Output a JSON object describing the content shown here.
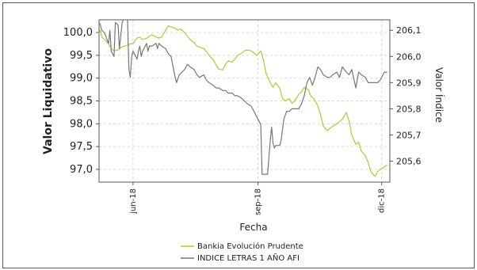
{
  "chart_data": {
    "type": "line",
    "xlabel": "Fecha",
    "ylabel_left": "Valor Liquidativo",
    "ylabel_right": "Valor Índice",
    "x_ticks": [
      "jun-18",
      "sep-18",
      "dic-18"
    ],
    "x_tick_values": [
      "2018-06-01",
      "2018-09-01",
      "2018-12-01"
    ],
    "x_range": [
      "2018-05-07",
      "2018-12-07"
    ],
    "y_left_ticks": [
      "97,0",
      "97,5",
      "98,0",
      "98,5",
      "99,0",
      "99,5",
      "100,0"
    ],
    "y_left_range": [
      96.72,
      100.28
    ],
    "y_right_ticks": [
      "205,6",
      "205,7",
      "205,8",
      "205,9",
      "206,0",
      "206,1"
    ],
    "y_right_range": [
      205.52,
      206.14
    ],
    "grid": true,
    "legend_position": "bottom",
    "series": [
      {
        "name": "Bankia Evolución Prudente",
        "axis": "left",
        "color": "#b5c832",
        "points": [
          [
            "2018-05-07",
            99.98
          ],
          [
            "2018-05-08",
            100.05
          ],
          [
            "2018-05-09",
            99.9
          ],
          [
            "2018-05-11",
            99.85
          ],
          [
            "2018-05-14",
            99.75
          ],
          [
            "2018-05-16",
            99.65
          ],
          [
            "2018-05-18",
            99.6
          ],
          [
            "2018-05-21",
            99.62
          ],
          [
            "2018-05-23",
            99.67
          ],
          [
            "2018-05-25",
            99.7
          ],
          [
            "2018-05-28",
            99.72
          ],
          [
            "2018-05-30",
            99.75
          ],
          [
            "2018-06-01",
            99.76
          ],
          [
            "2018-06-04",
            99.88
          ],
          [
            "2018-06-06",
            99.9
          ],
          [
            "2018-06-08",
            99.85
          ],
          [
            "2018-06-11",
            99.87
          ],
          [
            "2018-06-13",
            99.92
          ],
          [
            "2018-06-15",
            99.95
          ],
          [
            "2018-06-18",
            99.9
          ],
          [
            "2018-06-20",
            99.88
          ],
          [
            "2018-06-22",
            99.9
          ],
          [
            "2018-06-25",
            100.05
          ],
          [
            "2018-06-27",
            100.15
          ],
          [
            "2018-06-29",
            100.12
          ],
          [
            "2018-07-02",
            100.1
          ],
          [
            "2018-07-04",
            100.05
          ],
          [
            "2018-07-06",
            100.08
          ],
          [
            "2018-07-09",
            100.0
          ],
          [
            "2018-07-11",
            99.92
          ],
          [
            "2018-07-13",
            99.85
          ],
          [
            "2018-07-16",
            99.78
          ],
          [
            "2018-07-18",
            99.7
          ],
          [
            "2018-07-20",
            99.68
          ],
          [
            "2018-07-23",
            99.65
          ],
          [
            "2018-07-25",
            99.58
          ],
          [
            "2018-07-27",
            99.5
          ],
          [
            "2018-07-30",
            99.4
          ],
          [
            "2018-08-01",
            99.3
          ],
          [
            "2018-08-03",
            99.2
          ],
          [
            "2018-08-06",
            99.18
          ],
          [
            "2018-08-08",
            99.3
          ],
          [
            "2018-08-10",
            99.38
          ],
          [
            "2018-08-13",
            99.35
          ],
          [
            "2018-08-15",
            99.42
          ],
          [
            "2018-08-17",
            99.5
          ],
          [
            "2018-08-20",
            99.55
          ],
          [
            "2018-08-22",
            99.6
          ],
          [
            "2018-08-24",
            99.62
          ],
          [
            "2018-08-27",
            99.6
          ],
          [
            "2018-08-29",
            99.55
          ],
          [
            "2018-08-31",
            99.5
          ],
          [
            "2018-09-03",
            99.6
          ],
          [
            "2018-09-05",
            99.4
          ],
          [
            "2018-09-07",
            99.1
          ],
          [
            "2018-09-10",
            98.9
          ],
          [
            "2018-09-12",
            98.8
          ],
          [
            "2018-09-14",
            98.9
          ],
          [
            "2018-09-17",
            98.78
          ],
          [
            "2018-09-19",
            98.55
          ],
          [
            "2018-09-21",
            98.5
          ],
          [
            "2018-09-24",
            98.55
          ],
          [
            "2018-09-26",
            98.45
          ],
          [
            "2018-09-28",
            98.5
          ],
          [
            "2018-10-01",
            98.65
          ],
          [
            "2018-10-03",
            98.7
          ],
          [
            "2018-10-05",
            98.8
          ],
          [
            "2018-10-08",
            98.75
          ],
          [
            "2018-10-10",
            98.6
          ],
          [
            "2018-10-12",
            98.55
          ],
          [
            "2018-10-15",
            98.4
          ],
          [
            "2018-10-17",
            98.2
          ],
          [
            "2018-10-19",
            97.95
          ],
          [
            "2018-10-22",
            97.85
          ],
          [
            "2018-10-24",
            97.9
          ],
          [
            "2018-10-26",
            97.95
          ],
          [
            "2018-10-29",
            98.0
          ],
          [
            "2018-10-31",
            98.05
          ],
          [
            "2018-11-02",
            98.1
          ],
          [
            "2018-11-05",
            98.25
          ],
          [
            "2018-11-07",
            98.05
          ],
          [
            "2018-11-09",
            97.75
          ],
          [
            "2018-11-12",
            97.55
          ],
          [
            "2018-11-14",
            97.6
          ],
          [
            "2018-11-16",
            97.4
          ],
          [
            "2018-11-19",
            97.3
          ],
          [
            "2018-11-21",
            97.15
          ],
          [
            "2018-11-23",
            96.95
          ],
          [
            "2018-11-26",
            96.85
          ],
          [
            "2018-11-28",
            96.95
          ],
          [
            "2018-11-30",
            97.0
          ],
          [
            "2018-12-03",
            97.05
          ],
          [
            "2018-12-05",
            97.1
          ]
        ]
      },
      {
        "name": "INDICE LETRAS 1 AÑO AFI",
        "axis": "right",
        "color": "#7a7570",
        "points": [
          [
            "2018-05-07",
            206.13
          ],
          [
            "2018-05-08",
            206.12
          ],
          [
            "2018-05-09",
            206.1
          ],
          [
            "2018-05-11",
            206.09
          ],
          [
            "2018-05-14",
            206.05
          ],
          [
            "2018-05-15",
            206.1
          ],
          [
            "2018-05-16",
            206.02
          ],
          [
            "2018-05-18",
            206.0
          ],
          [
            "2018-05-19",
            206.13
          ],
          [
            "2018-05-21",
            206.12
          ],
          [
            "2018-05-22",
            206.03
          ],
          [
            "2018-05-24",
            206.13
          ],
          [
            "2018-05-25",
            206.14
          ],
          [
            "2018-05-28",
            206.14
          ],
          [
            "2018-05-29",
            205.95
          ],
          [
            "2018-05-30",
            205.92
          ],
          [
            "2018-05-31",
            206.0
          ],
          [
            "2018-06-01",
            206.02
          ],
          [
            "2018-06-04",
            205.99
          ],
          [
            "2018-06-05",
            206.02
          ],
          [
            "2018-06-06",
            206.04
          ],
          [
            "2018-06-07",
            206.0
          ],
          [
            "2018-06-08",
            206.02
          ],
          [
            "2018-06-11",
            206.05
          ],
          [
            "2018-06-12",
            206.02
          ],
          [
            "2018-06-13",
            206.04
          ],
          [
            "2018-06-15",
            206.04
          ],
          [
            "2018-06-18",
            206.05
          ],
          [
            "2018-06-19",
            206.03
          ],
          [
            "2018-06-20",
            206.05
          ],
          [
            "2018-06-22",
            206.04
          ],
          [
            "2018-06-25",
            206.03
          ],
          [
            "2018-06-27",
            206.01
          ],
          [
            "2018-06-29",
            206.0
          ],
          [
            "2018-07-02",
            205.92
          ],
          [
            "2018-07-03",
            205.9
          ],
          [
            "2018-07-05",
            205.93
          ],
          [
            "2018-07-09",
            205.95
          ],
          [
            "2018-07-11",
            205.97
          ],
          [
            "2018-07-13",
            205.96
          ],
          [
            "2018-07-16",
            205.95
          ],
          [
            "2018-07-18",
            205.93
          ],
          [
            "2018-07-20",
            205.92
          ],
          [
            "2018-07-23",
            205.93
          ],
          [
            "2018-07-25",
            205.91
          ],
          [
            "2018-07-27",
            205.9
          ],
          [
            "2018-07-30",
            205.89
          ],
          [
            "2018-08-01",
            205.88
          ],
          [
            "2018-08-03",
            205.88
          ],
          [
            "2018-08-06",
            205.87
          ],
          [
            "2018-08-08",
            205.87
          ],
          [
            "2018-08-10",
            205.86
          ],
          [
            "2018-08-13",
            205.86
          ],
          [
            "2018-08-15",
            205.85
          ],
          [
            "2018-08-17",
            205.85
          ],
          [
            "2018-08-20",
            205.84
          ],
          [
            "2018-08-22",
            205.83
          ],
          [
            "2018-08-24",
            205.82
          ],
          [
            "2018-08-27",
            205.81
          ],
          [
            "2018-08-29",
            205.79
          ],
          [
            "2018-08-31",
            205.77
          ],
          [
            "2018-09-03",
            205.74
          ],
          [
            "2018-09-04",
            205.55
          ],
          [
            "2018-09-05",
            205.55
          ],
          [
            "2018-09-06",
            205.55
          ],
          [
            "2018-09-07",
            205.55
          ],
          [
            "2018-09-08",
            205.55
          ],
          [
            "2018-09-10",
            205.68
          ],
          [
            "2018-09-11",
            205.73
          ],
          [
            "2018-09-12",
            205.67
          ],
          [
            "2018-09-13",
            205.65
          ],
          [
            "2018-09-14",
            205.66
          ],
          [
            "2018-09-17",
            205.66
          ],
          [
            "2018-09-18",
            205.68
          ],
          [
            "2018-09-20",
            205.76
          ],
          [
            "2018-09-22",
            205.79
          ],
          [
            "2018-09-24",
            205.79
          ],
          [
            "2018-09-26",
            205.8
          ],
          [
            "2018-09-28",
            205.8
          ],
          [
            "2018-10-01",
            205.8
          ],
          [
            "2018-10-03",
            205.82
          ],
          [
            "2018-10-05",
            205.85
          ],
          [
            "2018-10-07",
            205.9
          ],
          [
            "2018-10-09",
            205.92
          ],
          [
            "2018-10-11",
            205.89
          ],
          [
            "2018-10-13",
            205.92
          ],
          [
            "2018-10-15",
            205.96
          ],
          [
            "2018-10-17",
            205.95
          ],
          [
            "2018-10-19",
            205.93
          ],
          [
            "2018-10-22",
            205.92
          ],
          [
            "2018-10-24",
            205.92
          ],
          [
            "2018-10-26",
            205.93
          ],
          [
            "2018-10-29",
            205.94
          ],
          [
            "2018-10-31",
            205.92
          ],
          [
            "2018-11-02",
            205.96
          ],
          [
            "2018-11-05",
            205.94
          ],
          [
            "2018-11-07",
            205.93
          ],
          [
            "2018-11-09",
            205.95
          ],
          [
            "2018-11-12",
            205.88
          ],
          [
            "2018-11-14",
            205.94
          ],
          [
            "2018-11-16",
            205.93
          ],
          [
            "2018-11-19",
            205.92
          ],
          [
            "2018-11-21",
            205.9
          ],
          [
            "2018-11-23",
            205.9
          ],
          [
            "2018-11-26",
            205.9
          ],
          [
            "2018-11-28",
            205.9
          ],
          [
            "2018-11-30",
            205.91
          ],
          [
            "2018-12-03",
            205.94
          ],
          [
            "2018-12-05",
            205.94
          ]
        ]
      }
    ]
  }
}
